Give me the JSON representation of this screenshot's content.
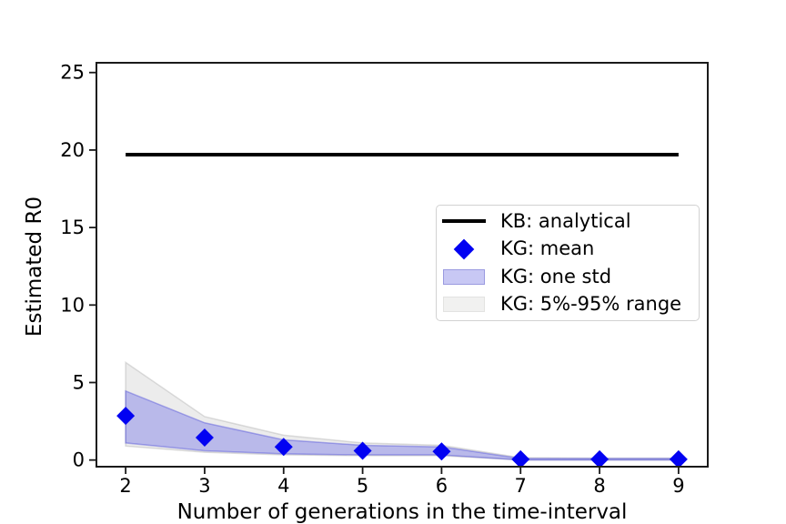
{
  "figure": {
    "background_color": "#ffffff",
    "accent_blue": "#0202f2",
    "band_blue_fill": "#c8c8f4",
    "band_blue_edge": "#9a9ae0",
    "band_gray_fill": "#f1f1f0",
    "band_gray_edge": "#e3e3e1"
  },
  "chart_data": {
    "type": "line",
    "title": "",
    "xlabel": "Number of generations in the time-interval",
    "ylabel": "Estimated R0",
    "x": [
      2,
      3,
      4,
      5,
      6,
      7,
      8,
      9
    ],
    "x_ticks": [
      "2",
      "3",
      "4",
      "5",
      "6",
      "7",
      "8",
      "9"
    ],
    "y_ticks": [
      "0",
      "5",
      "10",
      "15",
      "20",
      "25"
    ],
    "y_tick_values": [
      0,
      5,
      10,
      15,
      20,
      25
    ],
    "xlim": [
      1.63,
      9.37
    ],
    "ylim": [
      -0.43,
      25.63
    ],
    "grid": false,
    "legend_position": "center-right",
    "series": [
      {
        "name": "KG: 5%-95% range",
        "type": "band",
        "upper": [
          6.3,
          2.8,
          1.6,
          1.1,
          0.95,
          0.15,
          0.12,
          0.12
        ],
        "lower": [
          0.9,
          0.5,
          0.33,
          0.28,
          0.28,
          0.0,
          0.0,
          0.0
        ],
        "fill": "rgba(170,170,170,0.22)",
        "edge": "rgba(150,150,150,0.30)"
      },
      {
        "name": "KG: one std",
        "type": "band",
        "upper": [
          4.45,
          2.4,
          1.3,
          0.95,
          0.85,
          0.1,
          0.1,
          0.1
        ],
        "lower": [
          1.1,
          0.6,
          0.4,
          0.33,
          0.33,
          0.0,
          0.0,
          0.0
        ],
        "fill": "rgba(25,25,230,0.24)",
        "edge": "rgba(60,60,215,0.38)"
      },
      {
        "name": "KB: analytical",
        "type": "hline",
        "value": 19.7,
        "x_start": 2,
        "x_end": 9,
        "color": "#000000"
      },
      {
        "name": "KG: mean",
        "type": "scatter",
        "marker": "diamond",
        "values": [
          2.85,
          1.45,
          0.85,
          0.6,
          0.55,
          0.05,
          0.05,
          0.05
        ],
        "color": "#0202f2"
      }
    ]
  },
  "legend": {
    "items": [
      {
        "label": "KB: analytical",
        "swatch": "line",
        "color": "#000000"
      },
      {
        "label": "KG: mean",
        "swatch": "diamond",
        "color": "#0202f2"
      },
      {
        "label": "KG: one std",
        "swatch": "patch",
        "fill": "#c8c8f4",
        "edge": "#9a9ae0"
      },
      {
        "label": "KG: 5%-95% range",
        "swatch": "patch",
        "fill": "#f1f1f0",
        "edge": "#e3e3e1"
      }
    ]
  }
}
